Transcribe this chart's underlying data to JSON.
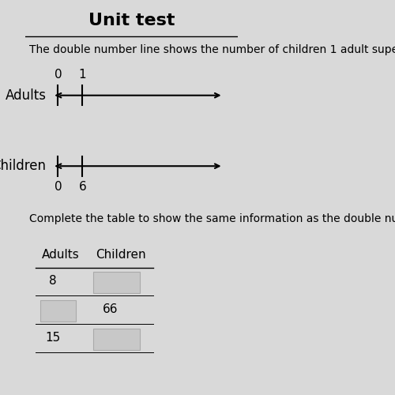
{
  "title": "Unit test",
  "description_text": "The double number line shows the number of children 1 adult supervises on a field",
  "adults_label": "Adults",
  "children_label": "Children",
  "adults_ticks": [
    0,
    1
  ],
  "children_ticks": [
    0,
    6
  ],
  "complete_table_text": "Complete the table to show the same information as the double number line.",
  "table_headers": [
    "Adults",
    "Children"
  ],
  "table_rows": [
    [
      "8",
      ""
    ],
    [
      "",
      "66"
    ],
    [
      "15",
      ""
    ]
  ],
  "bg_color": "#d9d9d9",
  "title_fontsize": 16,
  "body_fontsize": 11,
  "label_fontsize": 12,
  "tick_fontsize": 11
}
